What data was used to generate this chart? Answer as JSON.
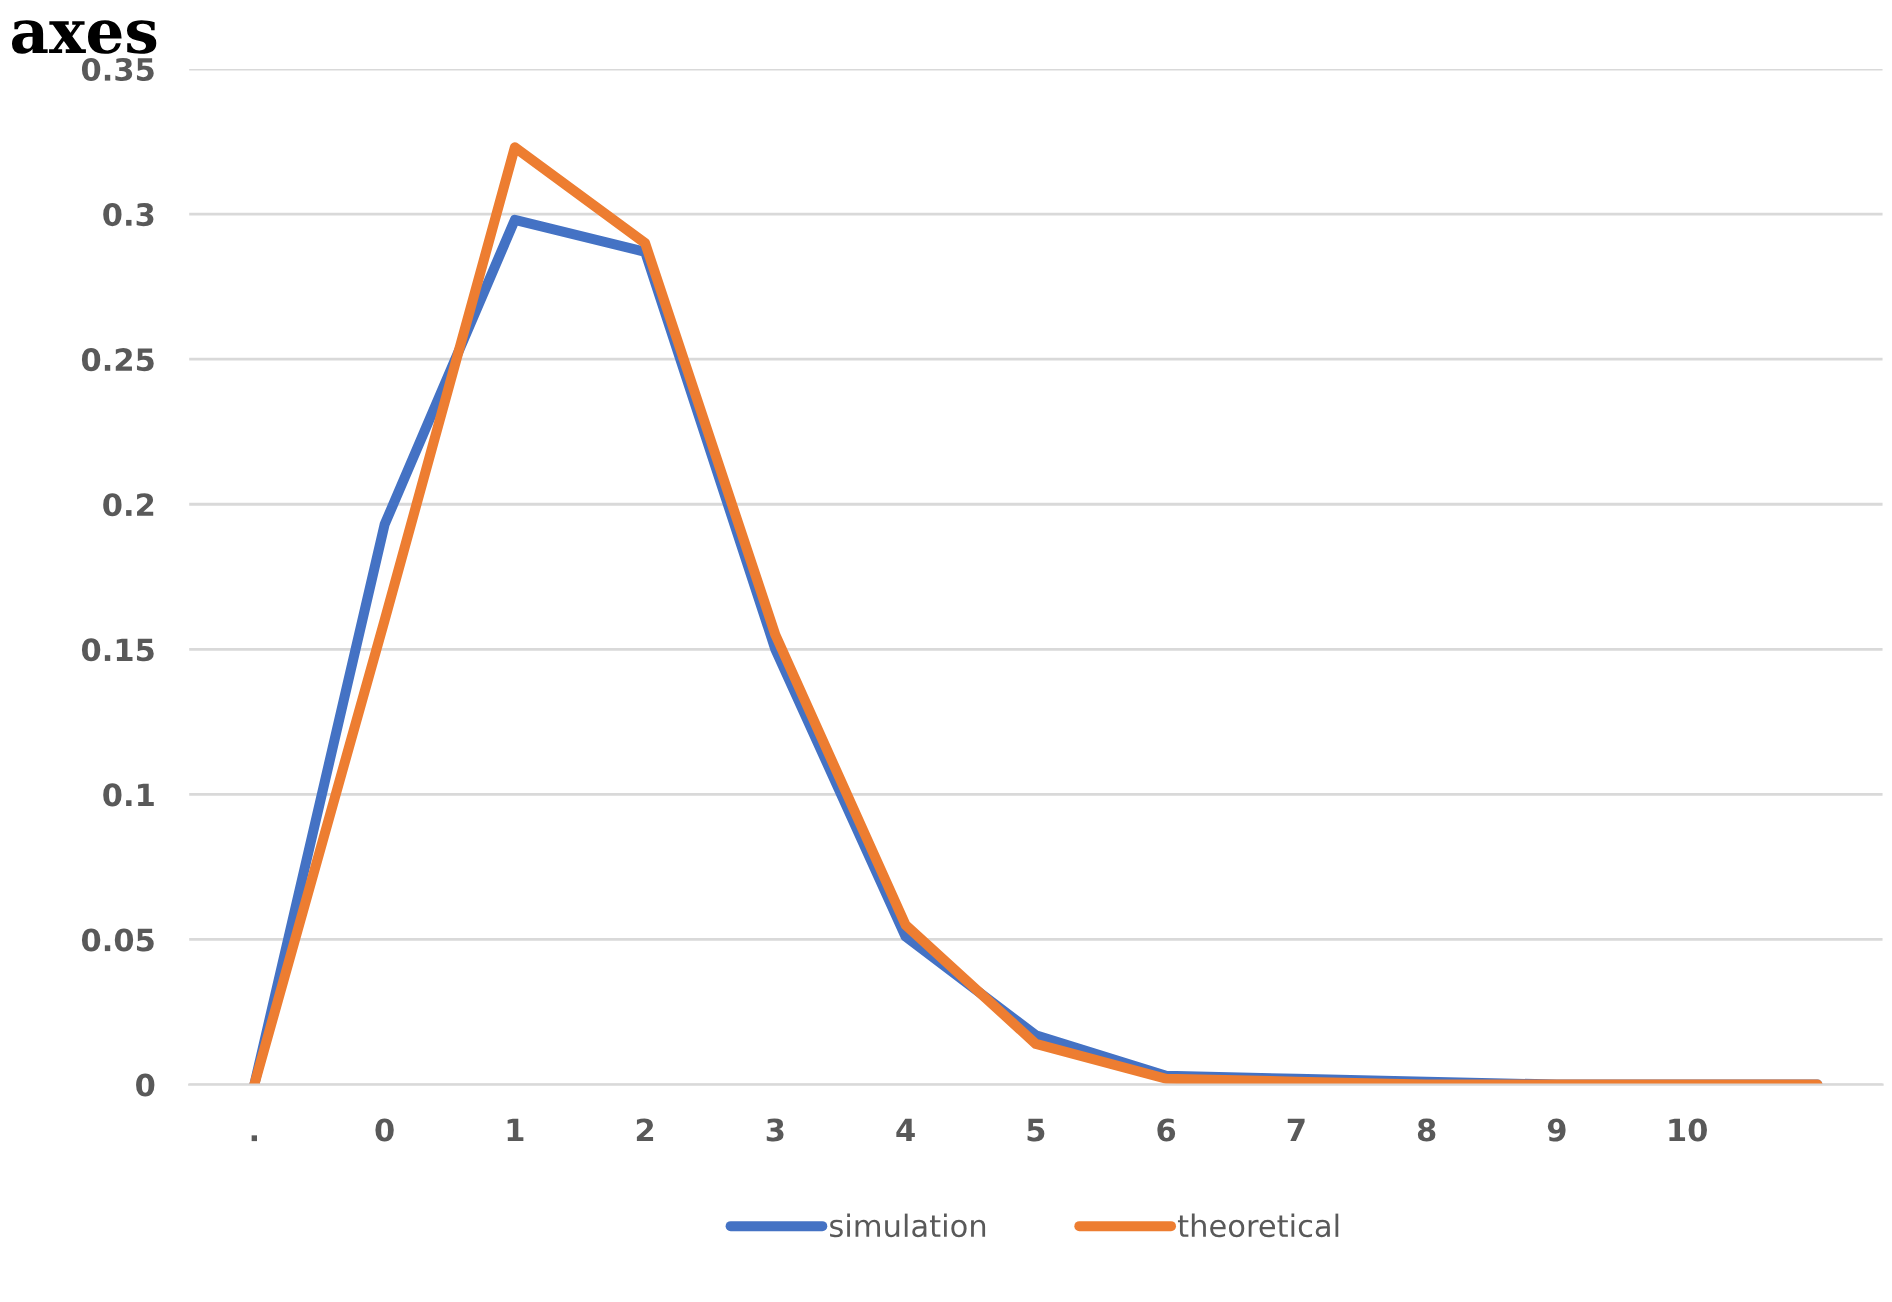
{
  "chart_data": {
    "type": "line",
    "annotations": [
      "axes"
    ],
    "categories": [
      ".",
      "0",
      "1",
      "2",
      "3",
      "4",
      "5",
      "6",
      "7",
      "8",
      "9",
      "10",
      null
    ],
    "series": [
      {
        "name": "simulation",
        "color": "#4472c4",
        "values": [
          0,
          0.193,
          0.298,
          0.287,
          0.15,
          0.051,
          0.017,
          0.003,
          0.002,
          0.001,
          0,
          0,
          0
        ]
      },
      {
        "name": "theoretical",
        "color": "#ed7d31",
        "values": [
          0,
          0.16,
          0.323,
          0.29,
          0.155,
          0.055,
          0.014,
          0.002,
          0.001,
          0,
          0,
          0,
          0
        ]
      }
    ],
    "ylim": [
      0,
      0.35
    ],
    "yticks": [
      0,
      0.05,
      0.1,
      0.15,
      0.2,
      0.25,
      0.3,
      0.35
    ],
    "grid": "y",
    "legend": "bottom",
    "marker": "none",
    "line_style": "solid"
  }
}
